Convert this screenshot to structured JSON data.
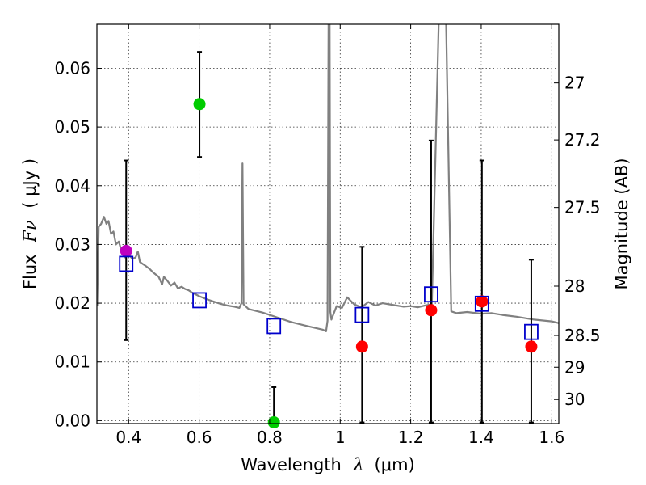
{
  "chart_data": {
    "type": "scatter",
    "xlabel": "Wavelength",
    "xlabel_symbol": "λ",
    "xlabel_unit": "(μm)",
    "ylabel": "Flux",
    "ylabel_symbol": "Fν",
    "ylabel_unit": "( μJy )",
    "ylabel_right": "Magnitude (AB)",
    "xlim": [
      0.31,
      1.62
    ],
    "ylim": [
      -0.0005,
      0.0675
    ],
    "grid": true,
    "x_ticks": [
      0.4,
      0.6,
      0.8,
      1.0,
      1.2,
      1.4,
      1.6
    ],
    "x_tick_labels": [
      "0.4",
      "0.6",
      "0.8",
      "1",
      "1.2",
      "1.4",
      "1.6"
    ],
    "y_ticks": [
      0.0,
      0.01,
      0.02,
      0.03,
      0.04,
      0.05,
      0.06
    ],
    "y_tick_labels": [
      "0.00",
      "0.01",
      "0.02",
      "0.03",
      "0.04",
      "0.05",
      "0.06"
    ],
    "right_ticks": [
      {
        "label": "27",
        "flux": 0.0575
      },
      {
        "label": "27.2",
        "flux": 0.0478
      },
      {
        "label": "27.5",
        "flux": 0.0363
      },
      {
        "label": "28",
        "flux": 0.0229
      },
      {
        "label": "28.5",
        "flux": 0.0145
      },
      {
        "label": "29",
        "flux": 0.0091
      },
      {
        "label": "30",
        "flux": 0.0036
      }
    ],
    "colors": {
      "model": "#808080",
      "observed": "#ff0000",
      "model_photometry": "#0000cc",
      "green_point": "#00cc00",
      "magenta_point": "#bf00bf",
      "errorbar": "#000000"
    },
    "model_spectrum": [
      [
        0.311,
        0.0195
      ],
      [
        0.315,
        0.033
      ],
      [
        0.322,
        0.0335
      ],
      [
        0.33,
        0.0347
      ],
      [
        0.337,
        0.0335
      ],
      [
        0.343,
        0.034
      ],
      [
        0.35,
        0.0318
      ],
      [
        0.357,
        0.0322
      ],
      [
        0.364,
        0.03
      ],
      [
        0.372,
        0.0305
      ],
      [
        0.38,
        0.0288
      ],
      [
        0.39,
        0.0278
      ],
      [
        0.4,
        0.0285
      ],
      [
        0.41,
        0.0275
      ],
      [
        0.42,
        0.0278
      ],
      [
        0.426,
        0.0288
      ],
      [
        0.432,
        0.027
      ],
      [
        0.445,
        0.0265
      ],
      [
        0.46,
        0.0258
      ],
      [
        0.47,
        0.0252
      ],
      [
        0.485,
        0.0245
      ],
      [
        0.495,
        0.0232
      ],
      [
        0.5,
        0.0245
      ],
      [
        0.51,
        0.0238
      ],
      [
        0.52,
        0.023
      ],
      [
        0.53,
        0.0235
      ],
      [
        0.54,
        0.0225
      ],
      [
        0.55,
        0.0228
      ],
      [
        0.56,
        0.0224
      ],
      [
        0.57,
        0.0222
      ],
      [
        0.58,
        0.0218
      ],
      [
        0.6,
        0.0212
      ],
      [
        0.62,
        0.0207
      ],
      [
        0.64,
        0.0203
      ],
      [
        0.66,
        0.0199
      ],
      [
        0.68,
        0.0196
      ],
      [
        0.7,
        0.0194
      ],
      [
        0.714,
        0.0192
      ],
      [
        0.72,
        0.02
      ],
      [
        0.723,
        0.0438
      ],
      [
        0.726,
        0.0198
      ],
      [
        0.74,
        0.019
      ],
      [
        0.78,
        0.0184
      ],
      [
        0.82,
        0.0176
      ],
      [
        0.86,
        0.0168
      ],
      [
        0.9,
        0.0162
      ],
      [
        0.95,
        0.0155
      ],
      [
        0.96,
        0.0152
      ],
      [
        0.964,
        0.017
      ],
      [
        0.967,
        0.069
      ],
      [
        0.97,
        0.069
      ],
      [
        0.972,
        0.0185
      ],
      [
        0.975,
        0.0172
      ],
      [
        0.99,
        0.0195
      ],
      [
        1.005,
        0.0192
      ],
      [
        1.02,
        0.021
      ],
      [
        1.04,
        0.0198
      ],
      [
        1.06,
        0.0193
      ],
      [
        1.08,
        0.0202
      ],
      [
        1.1,
        0.0196
      ],
      [
        1.12,
        0.02
      ],
      [
        1.14,
        0.0198
      ],
      [
        1.16,
        0.0196
      ],
      [
        1.18,
        0.0194
      ],
      [
        1.2,
        0.0195
      ],
      [
        1.22,
        0.0193
      ],
      [
        1.24,
        0.0196
      ],
      [
        1.26,
        0.0198
      ],
      [
        1.28,
        0.069
      ],
      [
        1.3,
        0.069
      ],
      [
        1.315,
        0.0186
      ],
      [
        1.33,
        0.0183
      ],
      [
        1.36,
        0.0185
      ],
      [
        1.4,
        0.0182
      ],
      [
        1.43,
        0.0183
      ],
      [
        1.46,
        0.018
      ],
      [
        1.5,
        0.0177
      ],
      [
        1.55,
        0.0172
      ],
      [
        1.6,
        0.0169
      ],
      [
        1.62,
        0.0166
      ]
    ],
    "observed_points": [
      {
        "x": 0.393,
        "y": 0.0289,
        "yerr_low": 0.0137,
        "yerr_high": 0.0443,
        "color": "magenta_point"
      },
      {
        "x": 0.601,
        "y": 0.0539,
        "yerr_low": 0.0449,
        "yerr_high": 0.0628,
        "color": "green_point"
      },
      {
        "x": 0.812,
        "y": -0.0003,
        "yerr_low": -0.0003,
        "yerr_high": 0.0057,
        "color": "green_point"
      },
      {
        "x": 1.062,
        "y": 0.0126,
        "yerr_low": -0.0003,
        "yerr_high": 0.0296,
        "color": "observed"
      },
      {
        "x": 1.258,
        "y": 0.0188,
        "yerr_low": -0.0003,
        "yerr_high": 0.0477,
        "color": "observed"
      },
      {
        "x": 1.402,
        "y": 0.0203,
        "yerr_low": -0.0003,
        "yerr_high": 0.0443,
        "color": "observed"
      },
      {
        "x": 1.542,
        "y": 0.0126,
        "yerr_low": -0.0003,
        "yerr_high": 0.0274,
        "color": "observed"
      }
    ],
    "model_photometry": [
      {
        "x": 0.393,
        "y": 0.0267
      },
      {
        "x": 0.601,
        "y": 0.0205
      },
      {
        "x": 0.812,
        "y": 0.0161
      },
      {
        "x": 1.062,
        "y": 0.018
      },
      {
        "x": 1.258,
        "y": 0.0215
      },
      {
        "x": 1.402,
        "y": 0.0199
      },
      {
        "x": 1.542,
        "y": 0.0151
      }
    ]
  }
}
